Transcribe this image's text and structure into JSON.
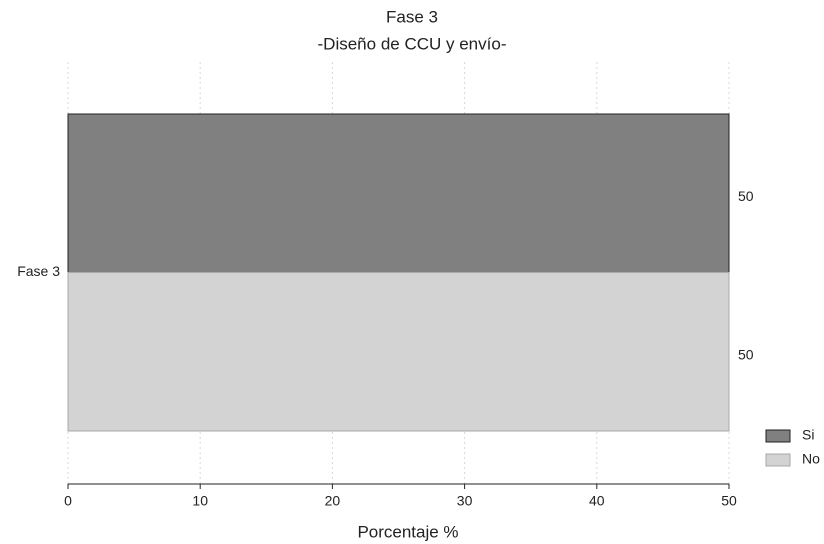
{
  "chart_data": {
    "type": "bar",
    "orientation": "horizontal",
    "title": "Fase 3",
    "subtitle": "-Diseño de CCU y envío-",
    "xlabel": "Porcentaje %",
    "categories": [
      "Fase 3"
    ],
    "series": [
      {
        "name": "Si",
        "color": "#808080",
        "edgecolor": "#222222",
        "values": [
          50
        ]
      },
      {
        "name": "No",
        "color": "#d3d3d3",
        "edgecolor": "#a8a8a8",
        "values": [
          50
        ]
      }
    ],
    "xlim": [
      0,
      50
    ],
    "xticks": [
      0,
      10,
      20,
      30,
      40,
      50
    ],
    "grid": true,
    "legend": "lower right"
  }
}
